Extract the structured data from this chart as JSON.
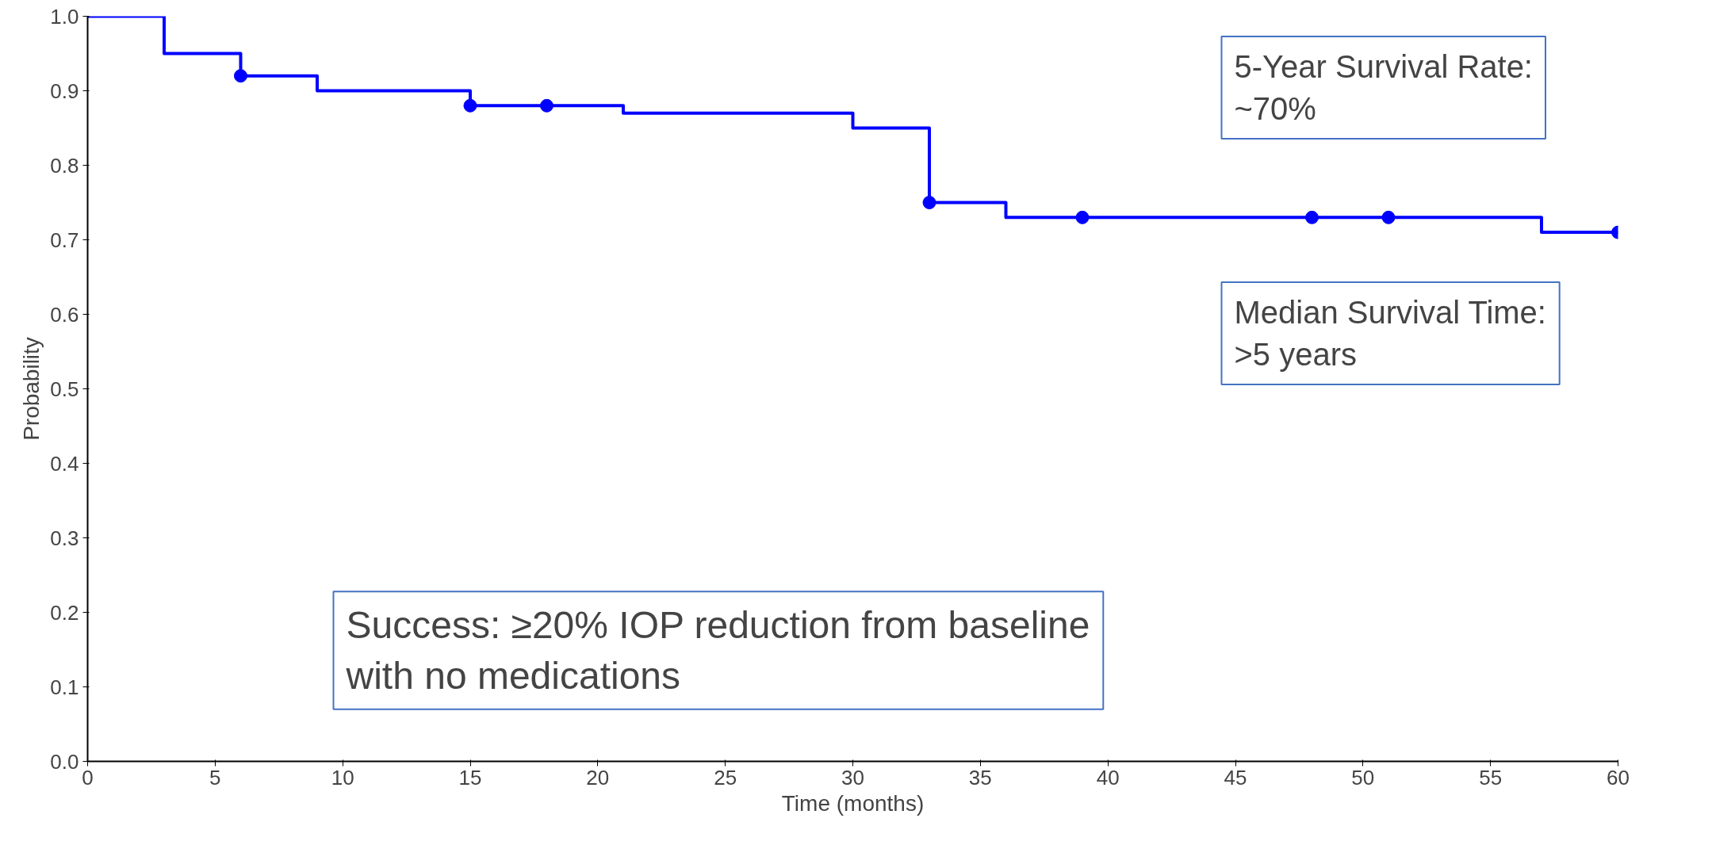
{
  "chart_data": {
    "type": "step",
    "xlabel": "Time (months)",
    "ylabel": "Probability",
    "xlim": [
      0,
      60
    ],
    "ylim": [
      0,
      1
    ],
    "xticks": [
      0,
      5,
      10,
      15,
      20,
      25,
      30,
      35,
      40,
      45,
      50,
      55,
      60
    ],
    "yticks": [
      {
        "value": 0,
        "label": "0.0"
      },
      {
        "value": 0.1,
        "label": "0.1"
      },
      {
        "value": 0.2,
        "label": "0.2"
      },
      {
        "value": 0.3,
        "label": "0.3"
      },
      {
        "value": 0.4,
        "label": "0.4"
      },
      {
        "value": 0.5,
        "label": "0.5"
      },
      {
        "value": 0.6,
        "label": "0.6"
      },
      {
        "value": 0.7,
        "label": "0.7"
      },
      {
        "value": 0.8,
        "label": "0.8"
      },
      {
        "value": 0.9,
        "label": "0.9"
      },
      {
        "value": 1,
        "label": "1.0"
      }
    ],
    "grid": false,
    "series": [
      {
        "color": "#0000ff",
        "marker": "none",
        "x": [
          0,
          3,
          6,
          9,
          15,
          21,
          30,
          33,
          36,
          57,
          60
        ],
        "values": [
          1.0,
          0.95,
          0.92,
          0.9,
          0.88,
          0.87,
          0.85,
          0.75,
          0.73,
          0.71,
          0.71
        ]
      },
      {
        "type": "scatter",
        "color": "#0000ff",
        "marker": "circle",
        "x": [
          6,
          15,
          18,
          33,
          39,
          48,
          51,
          60
        ],
        "values": [
          0.92,
          0.88,
          0.88,
          0.75,
          0.73,
          0.73,
          0.73,
          0.71
        ]
      }
    ],
    "annotations": [
      "5-Year Survival Rate:\n~70%",
      "Median Survival Time:\n>5 years",
      "Success: ≥20% IOP reduction from baseline\nwith no medications"
    ]
  }
}
